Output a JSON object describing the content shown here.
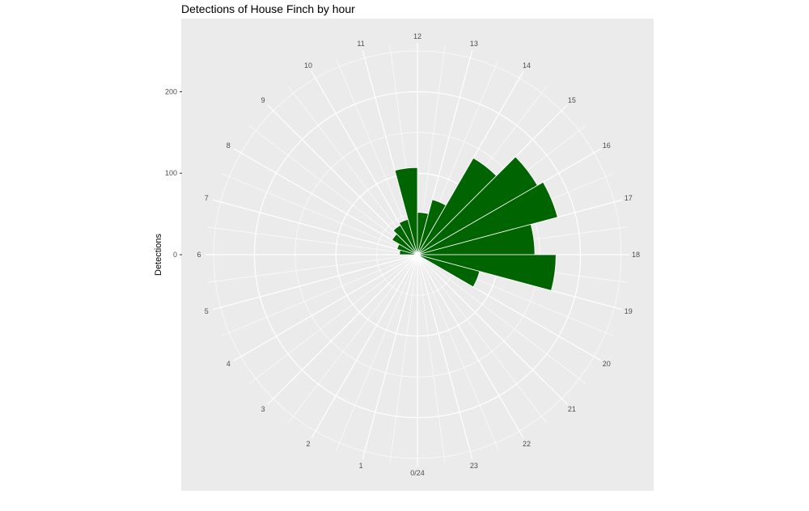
{
  "chart_data": {
    "type": "bar",
    "coord": "polar",
    "title": "Detections of House Finch by hour",
    "xlabel": "",
    "ylabel": "Detections",
    "categories": [
      "0",
      "1",
      "2",
      "3",
      "4",
      "5",
      "6",
      "7",
      "8",
      "9",
      "10",
      "11",
      "12",
      "13",
      "14",
      "15",
      "16",
      "17",
      "18",
      "19",
      "20",
      "21",
      "22",
      "23"
    ],
    "angle_labels": [
      "0/24",
      "1",
      "2",
      "3",
      "4",
      "5",
      "6",
      "7",
      "8",
      "9",
      "10",
      "11",
      "12",
      "13",
      "14",
      "15",
      "16",
      "17",
      "18",
      "19",
      "20",
      "21",
      "22",
      "23"
    ],
    "values": [
      0,
      0,
      0,
      0,
      0,
      0,
      22,
      26,
      36,
      42,
      45,
      107,
      52,
      70,
      137,
      170,
      178,
      144,
      170,
      79,
      0,
      0,
      0,
      0
    ],
    "ylim": [
      0,
      260
    ],
    "yticks": [
      0,
      100,
      200
    ],
    "ytick_labels": [
      "0",
      "100",
      "200"
    ],
    "grid": true,
    "bar_color": "#006400",
    "panel_color": "#ebebeb",
    "grid_color": "#ffffff"
  }
}
